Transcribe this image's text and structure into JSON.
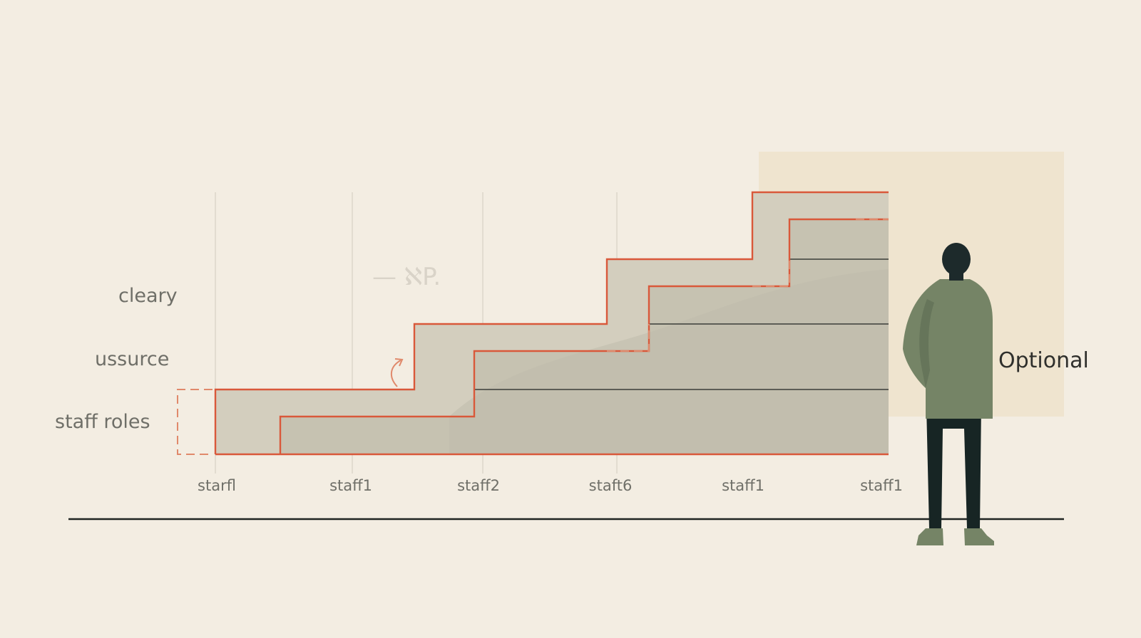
{
  "diagram": {
    "row_labels": [
      "cleary",
      "ussurce",
      "staff roles"
    ],
    "axis_ticks": [
      "starfl",
      "staff1",
      "staff2",
      "staft6",
      "staff1",
      "staff1"
    ],
    "side_label": "Optional",
    "faint_text": "— ℵP.",
    "colors": {
      "background": "#f3ede2",
      "panel": "#efe4cf",
      "step_fill": "#c9c5b4",
      "step_outline": "#d9583a",
      "baseline": "#1f2421",
      "figure_body": "#758466",
      "figure_head": "#1d2a2b",
      "figure_legs": "#172524"
    },
    "icons": [
      "person-figure",
      "curved-arrow-icon"
    ]
  }
}
